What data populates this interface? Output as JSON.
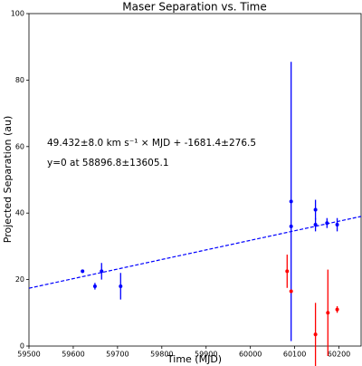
{
  "chart_data": {
    "type": "scatter",
    "title": "Maser Separation vs. Time",
    "x_label": "Time (MJD)",
    "y_label": "Projected Separation (au)",
    "xlim": [
      59500,
      60250
    ],
    "ylim": [
      0,
      100
    ],
    "xticks": [
      59500,
      59600,
      59700,
      59800,
      59900,
      60000,
      60100,
      60200
    ],
    "yticks": [
      0,
      20,
      40,
      60,
      80,
      100
    ],
    "annotations": [
      "49.432±8.0 km s⁻¹ × MJD + -1681.4±276.5",
      "y=0 at 58896.8±13605.1"
    ],
    "series": [
      {
        "color": "#0000ff",
        "x": [
          59621,
          59649,
          59664,
          59707,
          60092,
          60092,
          60147,
          60147,
          60173,
          60196
        ],
        "values": [
          22.5,
          18,
          22.5,
          18,
          43.5,
          36,
          41,
          36.5,
          37,
          36.5
        ],
        "errors": [
          0.5,
          1,
          2.5,
          4,
          42,
          0.5,
          3,
          2,
          1.5,
          2
        ]
      },
      {
        "color": "#ff0000",
        "x": [
          60083,
          60092,
          60147,
          60175,
          60196
        ],
        "values": [
          22.5,
          16.5,
          3.5,
          10,
          11
        ],
        "errors": [
          5,
          0.5,
          9.5,
          13,
          1
        ]
      }
    ],
    "fit": {
      "color": "#0000ff",
      "x": [
        59500,
        60250
      ],
      "y": [
        17.4,
        39.0
      ]
    }
  }
}
